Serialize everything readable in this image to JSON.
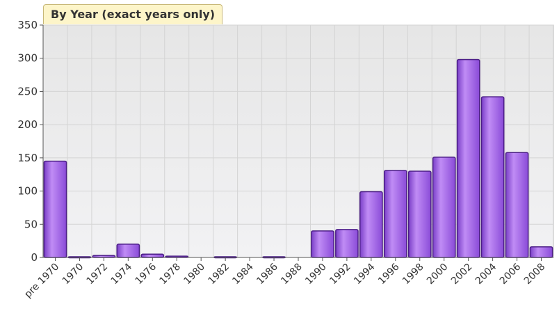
{
  "chart_data": {
    "type": "bar",
    "title": "By Year (exact years only)",
    "categories": [
      "pre 1970",
      "1970",
      "1972",
      "1974",
      "1976",
      "1978",
      "1980",
      "1982",
      "1984",
      "1986",
      "1988",
      "1990",
      "1992",
      "1994",
      "1996",
      "1998",
      "2000",
      "2002",
      "2004",
      "2006",
      "2008"
    ],
    "values": [
      145,
      1,
      3,
      20,
      5,
      2,
      0,
      1,
      0,
      1,
      0,
      40,
      42,
      99,
      131,
      130,
      151,
      298,
      242,
      158,
      16
    ],
    "xlabel": "",
    "ylabel": "",
    "ylim": [
      0,
      350
    ],
    "yticks": [
      0,
      50,
      100,
      150,
      200,
      250,
      300,
      350
    ],
    "grid": true,
    "colors": {
      "bar_fill": "#9b5fe0",
      "bar_highlight": "#c08cf5",
      "bar_stroke": "#4b1d86",
      "plot_bg": "#ebebeb",
      "grid": "#d4d4d4",
      "title_bg": "#fdf5c9"
    }
  }
}
